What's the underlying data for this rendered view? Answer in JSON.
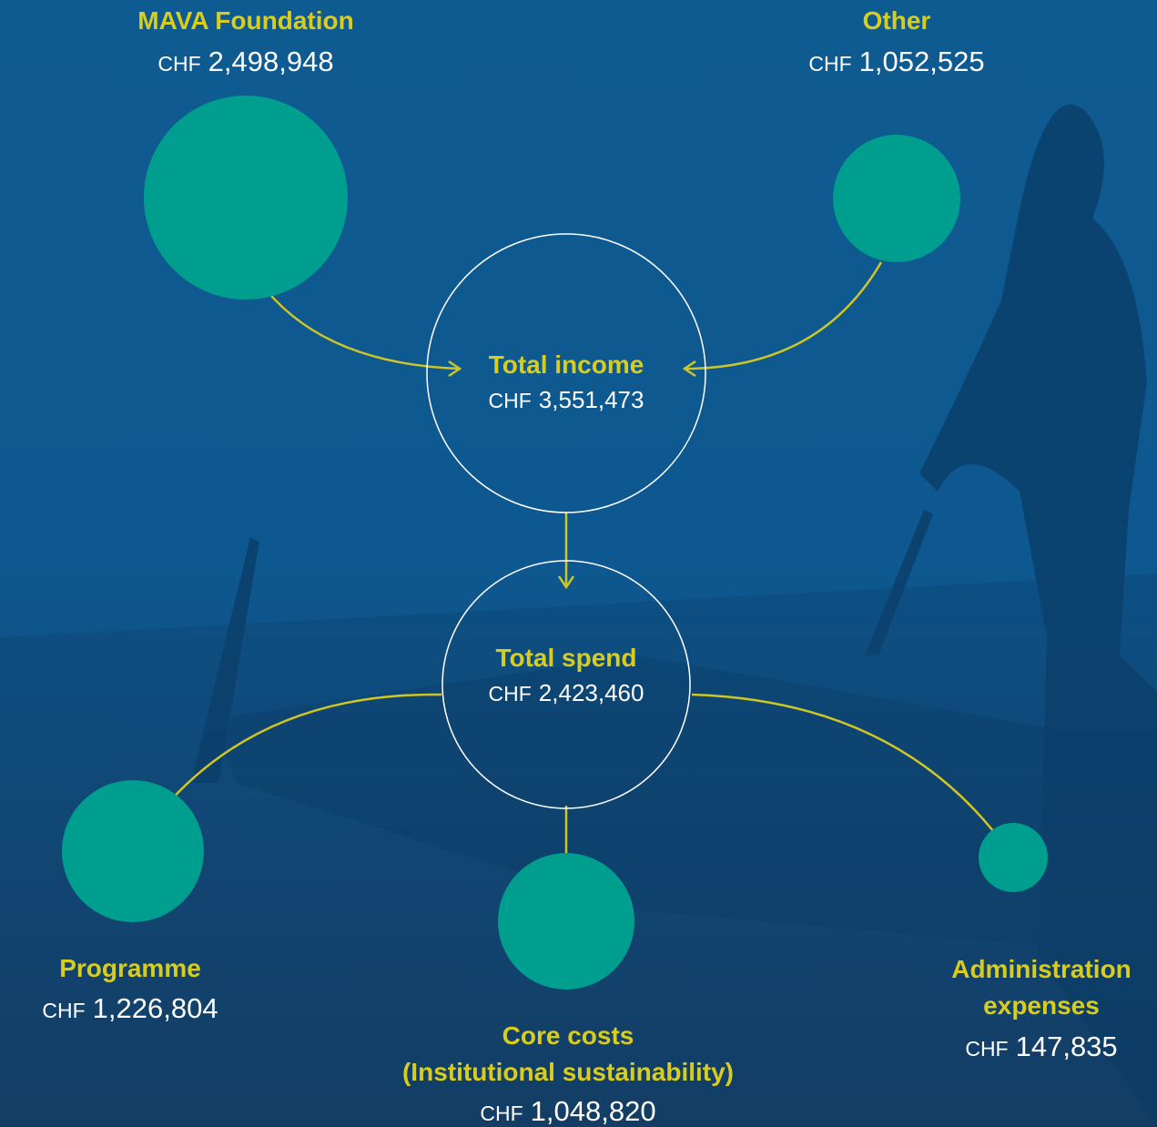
{
  "nodes": [
    {
      "label": [
        "MAVA Foundation"
      ],
      "currency": "CHF",
      "amount": "2,498,948"
    },
    {
      "label": [
        "Other"
      ],
      "currency": "CHF",
      "amount": "1,052,525"
    },
    {
      "label": [
        "Total income"
      ],
      "currency": "CHF",
      "amount": "3,551,473"
    },
    {
      "label": [
        "Total spend"
      ],
      "currency": "CHF",
      "amount": "2,423,460"
    },
    {
      "label": [
        "Programme"
      ],
      "currency": "CHF",
      "amount": "1,226,804"
    },
    {
      "label": [
        "Core costs",
        "(Institutional sustainability)"
      ],
      "currency": "CHF",
      "amount": "1,048,820"
    },
    {
      "label": [
        "Administration",
        "expenses"
      ],
      "currency": "CHF",
      "amount": "147,835"
    }
  ]
}
